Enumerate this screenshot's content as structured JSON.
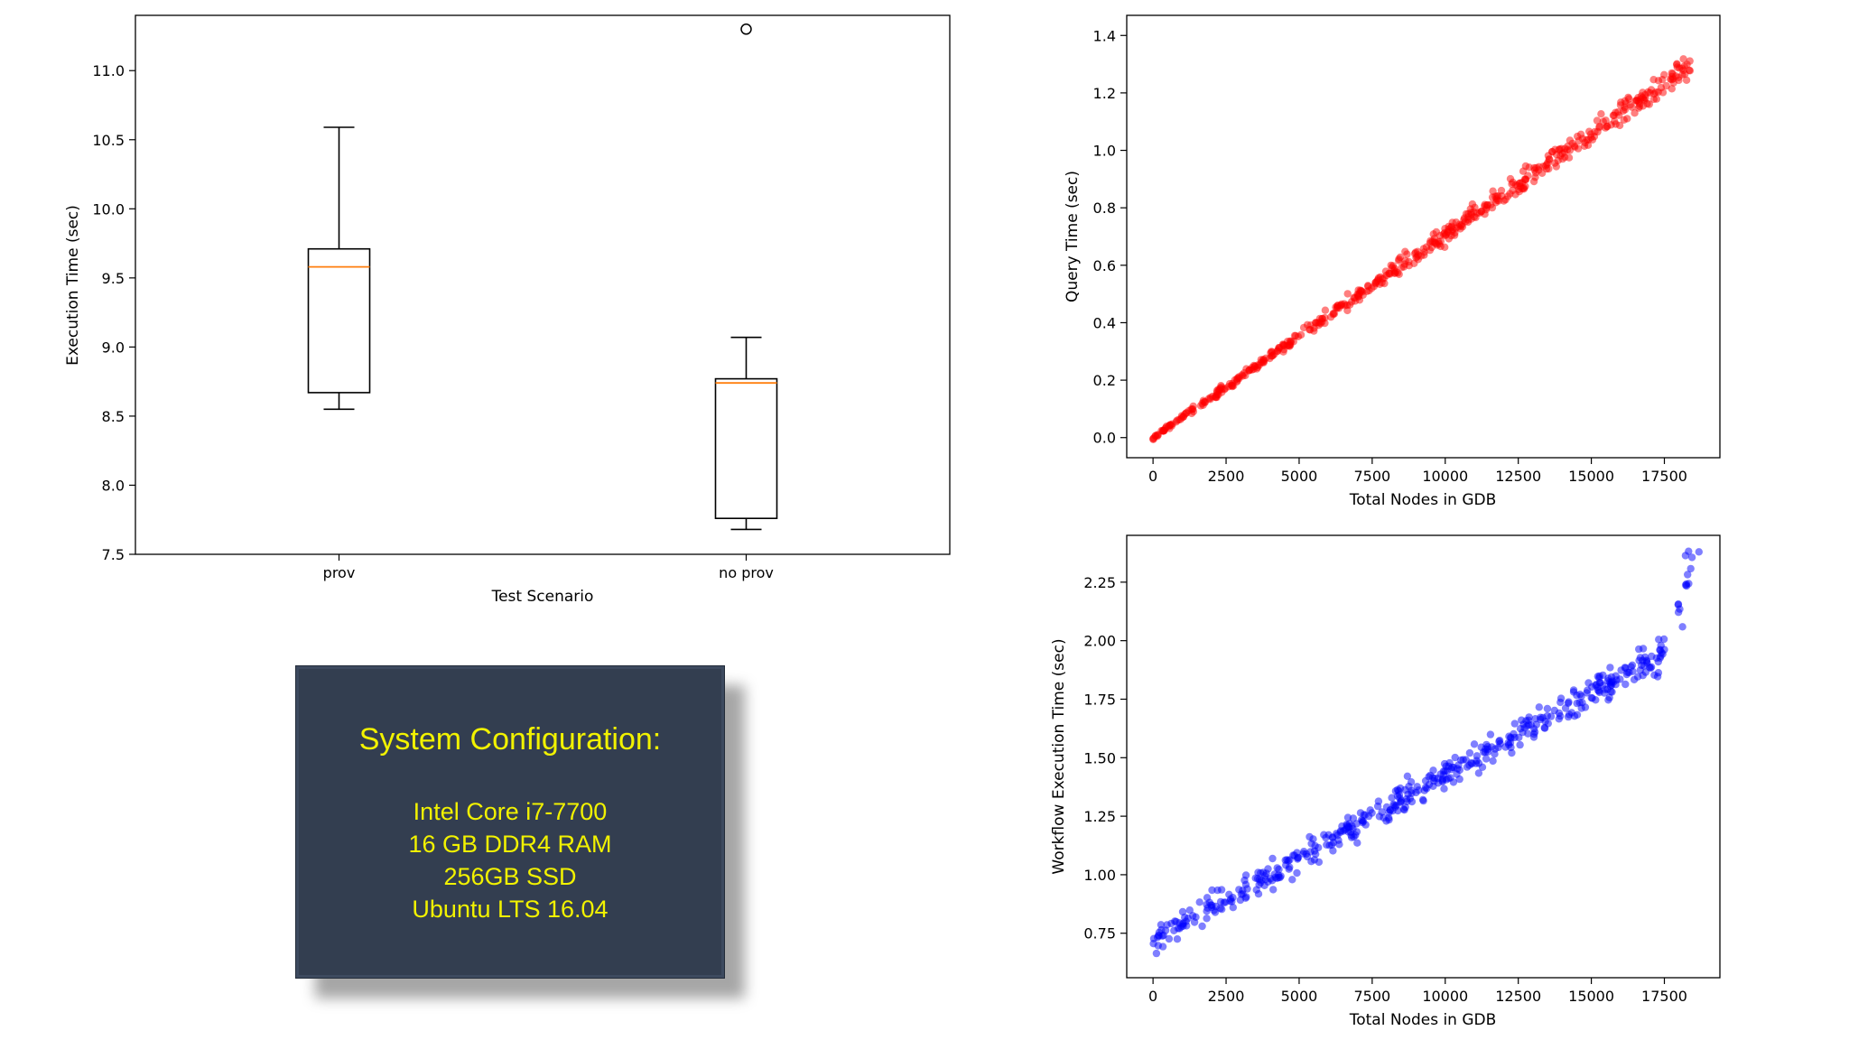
{
  "chart_data": [
    {
      "type": "box",
      "xlabel": "Test Scenario",
      "ylabel": "Execution Time (sec)",
      "ylim": [
        7.5,
        11.4
      ],
      "yticks": [
        "7.5",
        "8.0",
        "8.5",
        "9.0",
        "9.5",
        "10.0",
        "10.5",
        "11.0"
      ],
      "categories": [
        "prov",
        "no prov"
      ],
      "boxes": [
        {
          "name": "prov",
          "whisker_low": 8.55,
          "q1": 8.67,
          "median": 9.58,
          "q3": 9.71,
          "whisker_high": 10.59,
          "outliers": []
        },
        {
          "name": "no prov",
          "whisker_low": 7.68,
          "q1": 7.76,
          "median": 8.74,
          "q3": 8.77,
          "whisker_high": 9.07,
          "outliers": [
            11.3
          ]
        }
      ],
      "colors": {
        "box": "#000000",
        "median": "#ff7f0e"
      }
    },
    {
      "type": "scatter",
      "xlabel": "Total Nodes in GDB",
      "ylabel": "Query Time (sec)",
      "xlim": [
        -900,
        19400
      ],
      "ylim": [
        -0.07,
        1.47
      ],
      "xticks": [
        "0",
        "2500",
        "5000",
        "7500",
        "10000",
        "12500",
        "15000",
        "17500"
      ],
      "yticks": [
        "0.0",
        "0.2",
        "0.4",
        "0.6",
        "0.8",
        "1.0",
        "1.2",
        "1.4"
      ],
      "color": "#ff0000",
      "trend": {
        "x_start": 0,
        "x_end": 18400,
        "y_start": 0.0,
        "y_end": 1.3
      },
      "n_points": 520
    },
    {
      "type": "scatter",
      "xlabel": "Total Nodes in GDB",
      "ylabel": "Workflow Execution Time (sec)",
      "xlim": [
        -900,
        19400
      ],
      "ylim": [
        0.56,
        2.45
      ],
      "xticks": [
        "0",
        "2500",
        "5000",
        "7500",
        "10000",
        "12500",
        "15000",
        "17500"
      ],
      "yticks": [
        "0.75",
        "1.00",
        "1.25",
        "1.50",
        "1.75",
        "2.00",
        "2.25"
      ],
      "color": "#0000ff",
      "trend": {
        "x_start": 0,
        "x_end": 17500,
        "y_start": 0.72,
        "y_end": 1.95
      },
      "tail": [
        [
          18000,
          2.1
        ],
        [
          18300,
          2.25
        ],
        [
          18450,
          2.33
        ]
      ],
      "n_points": 460
    }
  ],
  "config": {
    "title": "System Configuration:",
    "lines": [
      "Intel Core i7-7700",
      "16 GB DDR4 RAM",
      "256GB SSD",
      "Ubuntu LTS 16.04"
    ]
  }
}
